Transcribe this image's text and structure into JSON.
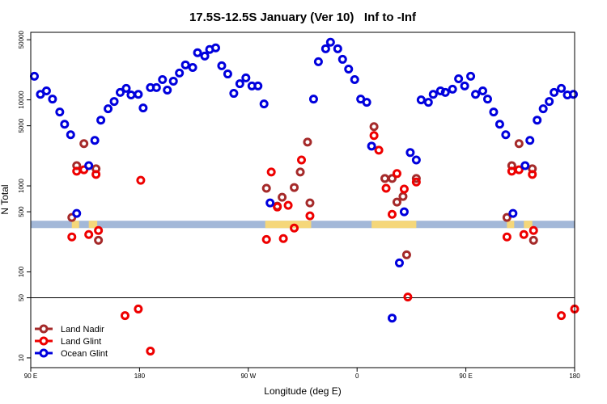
{
  "chart_data": {
    "type": "scatter",
    "title": "17.5S-12.5S January (Ver 10)   Inf to -Inf",
    "xlabel": "Longitude (deg E)",
    "ylabel": "N Total",
    "xlim": [
      90,
      540
    ],
    "ylim": [
      7.7,
      61000
    ],
    "log_y": true,
    "xticks": [
      {
        "value": 90,
        "label": "90 E"
      },
      180,
      {
        "value": 270,
        "label": "90 W"
      },
      {
        "value": 360,
        "label": "0"
      },
      {
        "value": 450,
        "label": "90 E"
      },
      {
        "value": 540,
        "label": "180"
      }
    ],
    "yticks": [
      10,
      50,
      100,
      500,
      1000,
      5000,
      10000,
      50000
    ],
    "hline": 50,
    "strip": {
      "ylim": [
        323,
        393
      ],
      "color": "#a3b8d8",
      "land_color": "#f5d77a",
      "land": [
        [
          124,
          130
        ],
        [
          138,
          145
        ],
        [
          284,
          322
        ],
        [
          372,
          409
        ],
        [
          484,
          490
        ],
        [
          498,
          505
        ]
      ]
    },
    "legend": "bottomleft",
    "series": [
      {
        "name": "Land Nadir",
        "color": "#a52a2a",
        "x": [
          134,
          128,
          144,
          124,
          146,
          285,
          298,
          294,
          308,
          313,
          319,
          321,
          374,
          383,
          389,
          393,
          398,
          401,
          409,
          494,
          488,
          505,
          484,
          506
        ],
        "values": [
          3100,
          1720,
          1580,
          429,
          233,
          937,
          738,
          581,
          957,
          1450,
          3230,
          634,
          4880,
          1220,
          1220,
          648,
          754,
          158,
          1220,
          3100,
          1720,
          1580,
          429,
          233
        ]
      },
      {
        "name": "Land Glint",
        "color": "#ee0000",
        "x": [
          124,
          128,
          134,
          144,
          146,
          138,
          168,
          179,
          181,
          189,
          285,
          289,
          294,
          299,
          303,
          308,
          314,
          321,
          374,
          378,
          384,
          389,
          393,
          399,
          402,
          409,
          484,
          488,
          494,
          505,
          506,
          498,
          529,
          540
        ],
        "values": [
          255,
          1480,
          1540,
          1360,
          303,
          272,
          31,
          37,
          1160,
          12,
          238,
          1450,
          568,
          244,
          594,
          323,
          2000,
          448,
          3850,
          2600,
          937,
          467,
          1390,
          917,
          51,
          1110,
          255,
          1480,
          1540,
          1360,
          303,
          272,
          31,
          37
        ]
      },
      {
        "name": "Ocean Glint",
        "color": "#0000dd",
        "x": [
          93,
          98,
          103,
          108,
          114,
          118,
          123,
          128,
          138,
          143,
          148,
          154,
          159,
          164,
          169,
          173,
          179,
          183,
          189,
          194,
          199,
          203,
          208,
          213,
          218,
          224,
          228,
          234,
          238,
          243,
          248,
          253,
          258,
          263,
          268,
          273,
          278,
          283,
          288,
          324,
          328,
          334,
          338,
          344,
          348,
          353,
          358,
          363,
          368,
          372,
          389,
          395,
          399,
          404,
          409,
          413,
          419,
          423,
          429,
          433,
          439,
          444,
          449,
          454,
          458,
          464,
          468,
          473,
          478,
          483,
          489,
          499,
          503,
          509,
          514,
          519,
          523,
          529,
          534,
          539
        ],
        "values": [
          18800,
          11600,
          12700,
          10200,
          7220,
          5210,
          3930,
          478,
          1720,
          3380,
          5810,
          7870,
          9580,
          12200,
          13600,
          11400,
          11600,
          8050,
          13900,
          13900,
          17200,
          13000,
          16500,
          20500,
          25500,
          23800,
          35300,
          32300,
          38500,
          40200,
          24900,
          20000,
          11900,
          15400,
          18000,
          14500,
          14500,
          8970,
          634,
          10200,
          27800,
          39300,
          46800,
          39300,
          29600,
          22800,
          17200,
          10200,
          9370,
          2900,
          29,
          127,
          499,
          2440,
          2000,
          10000,
          9370,
          11600,
          12700,
          12200,
          13300,
          17600,
          14500,
          18800,
          11600,
          12700,
          10200,
          7220,
          5210,
          3930,
          478,
          1720,
          3380,
          5810,
          7870,
          9580,
          12200,
          13600,
          11400,
          11600
        ]
      }
    ]
  }
}
